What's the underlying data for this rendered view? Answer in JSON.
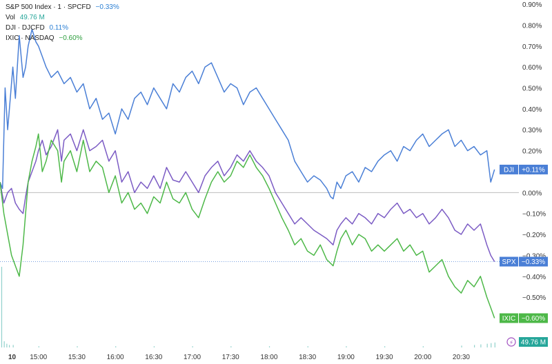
{
  "legend": {
    "spx": {
      "title": "S&P 500 Index · 1 · SPCFD",
      "change": "−0.33%",
      "color": "#2a7fd4"
    },
    "vol": {
      "title": "Vol",
      "value": "49.76 M",
      "color": "#26a69a"
    },
    "dji": {
      "title": "DJI · DJCFD",
      "change": "0.11%",
      "color": "#2a7fd4"
    },
    "ixic": {
      "title": "IXIC · NASDAQ",
      "change": "−0.60%",
      "color": "#2e9e3e"
    }
  },
  "badges": {
    "dji": {
      "symbol": "DJI",
      "value": "+0.11%"
    },
    "spx": {
      "symbol": "SPX",
      "value": "−0.33%"
    },
    "ixic": {
      "symbol": "IXIC",
      "value": "−0.60%"
    },
    "vol": {
      "value": "49.76 M"
    }
  },
  "colors": {
    "dji": "#4a7fd6",
    "spx": "#7b5bc4",
    "ixic": "#4db848",
    "vol": "#26a69a",
    "grid": "#bdbdbd"
  },
  "chart_data": {
    "type": "line",
    "ylim": [
      -0.74,
      0.92
    ],
    "xlim": [
      0,
      405
    ],
    "y_ticks": [
      "0.90%",
      "0.80%",
      "0.70%",
      "0.60%",
      "0.50%",
      "0.40%",
      "0.30%",
      "0.20%",
      "0.10%",
      "0.00%",
      "−0.10%",
      "−0.20%",
      "−0.30%",
      "−0.40%",
      "−0.50%",
      "−0.60%",
      "−0.70%"
    ],
    "y_tick_values": [
      0.9,
      0.8,
      0.7,
      0.6,
      0.5,
      0.4,
      0.3,
      0.2,
      0.1,
      0.0,
      -0.1,
      -0.2,
      -0.3,
      -0.4,
      -0.5,
      -0.6,
      -0.7
    ],
    "x_ticks": [
      "10",
      "15:00",
      "15:30",
      "16:00",
      "16:30",
      "17:00",
      "17:30",
      "18:00",
      "18:30",
      "19:00",
      "19:30",
      "20:00",
      "20:30"
    ],
    "x_tick_values": [
      0,
      30,
      60,
      90,
      120,
      150,
      180,
      210,
      240,
      270,
      300,
      330,
      360
    ],
    "series": [
      {
        "name": "DJI",
        "key": "dji",
        "x": [
          0,
          2,
          4,
          6,
          8,
          10,
          12,
          15,
          18,
          20,
          22,
          25,
          28,
          30,
          33,
          36,
          40,
          45,
          50,
          55,
          60,
          65,
          70,
          75,
          80,
          85,
          90,
          95,
          100,
          105,
          110,
          115,
          120,
          125,
          130,
          135,
          140,
          145,
          150,
          155,
          160,
          165,
          170,
          175,
          180,
          185,
          190,
          195,
          200,
          205,
          210,
          215,
          220,
          225,
          230,
          235,
          240,
          245,
          250,
          255,
          258,
          260,
          263,
          266,
          270,
          275,
          280,
          285,
          290,
          295,
          300,
          305,
          310,
          315,
          320,
          325,
          330,
          335,
          340,
          345,
          350,
          355,
          360,
          365,
          370,
          375,
          380,
          383,
          386
        ],
        "y": [
          0.05,
          0.02,
          0.5,
          0.3,
          0.45,
          0.6,
          0.45,
          0.75,
          0.55,
          0.6,
          0.7,
          0.78,
          0.72,
          0.7,
          0.65,
          0.6,
          0.55,
          0.58,
          0.52,
          0.55,
          0.48,
          0.52,
          0.4,
          0.45,
          0.35,
          0.38,
          0.28,
          0.4,
          0.35,
          0.45,
          0.48,
          0.42,
          0.5,
          0.45,
          0.4,
          0.52,
          0.48,
          0.55,
          0.58,
          0.52,
          0.6,
          0.62,
          0.55,
          0.48,
          0.52,
          0.5,
          0.42,
          0.48,
          0.5,
          0.45,
          0.4,
          0.35,
          0.3,
          0.25,
          0.15,
          0.1,
          0.05,
          0.08,
          0.06,
          0.02,
          -0.02,
          -0.03,
          0.05,
          0.02,
          0.08,
          0.1,
          0.05,
          0.12,
          0.1,
          0.15,
          0.18,
          0.2,
          0.15,
          0.22,
          0.2,
          0.25,
          0.28,
          0.22,
          0.25,
          0.28,
          0.3,
          0.22,
          0.25,
          0.2,
          0.22,
          0.18,
          0.2,
          0.05,
          0.11
        ]
      },
      {
        "name": "SPX",
        "key": "spx",
        "x": [
          0,
          3,
          6,
          9,
          12,
          15,
          18,
          20,
          22,
          25,
          28,
          30,
          33,
          36,
          40,
          45,
          48,
          50,
          55,
          60,
          65,
          70,
          75,
          80,
          85,
          90,
          95,
          100,
          105,
          110,
          115,
          120,
          125,
          130,
          135,
          140,
          145,
          150,
          155,
          160,
          165,
          170,
          175,
          180,
          185,
          190,
          195,
          200,
          205,
          210,
          215,
          220,
          225,
          230,
          235,
          240,
          245,
          250,
          255,
          260,
          263,
          266,
          270,
          275,
          280,
          285,
          290,
          295,
          300,
          305,
          310,
          315,
          320,
          325,
          330,
          335,
          340,
          345,
          350,
          355,
          360,
          365,
          370,
          375,
          380,
          383,
          386
        ],
        "y": [
          0.05,
          -0.05,
          0.0,
          0.02,
          -0.05,
          -0.08,
          -0.1,
          -0.02,
          0.05,
          0.1,
          0.15,
          0.2,
          0.25,
          0.18,
          0.22,
          0.3,
          0.15,
          0.25,
          0.28,
          0.2,
          0.3,
          0.2,
          0.22,
          0.25,
          0.15,
          0.2,
          0.05,
          0.1,
          0.0,
          0.05,
          0.02,
          0.08,
          0.02,
          0.12,
          0.06,
          0.05,
          0.1,
          0.05,
          0.0,
          0.08,
          0.12,
          0.15,
          0.08,
          0.12,
          0.18,
          0.15,
          0.2,
          0.15,
          0.12,
          0.08,
          0.0,
          -0.05,
          -0.1,
          -0.15,
          -0.12,
          -0.15,
          -0.18,
          -0.2,
          -0.22,
          -0.25,
          -0.18,
          -0.15,
          -0.12,
          -0.15,
          -0.1,
          -0.12,
          -0.15,
          -0.1,
          -0.12,
          -0.08,
          -0.05,
          -0.1,
          -0.08,
          -0.12,
          -0.1,
          -0.15,
          -0.12,
          -0.08,
          -0.12,
          -0.18,
          -0.2,
          -0.15,
          -0.18,
          -0.15,
          -0.25,
          -0.3,
          -0.33
        ]
      },
      {
        "name": "IXIC",
        "key": "ixic",
        "x": [
          0,
          3,
          6,
          9,
          12,
          15,
          18,
          20,
          22,
          25,
          28,
          30,
          33,
          36,
          40,
          45,
          48,
          50,
          55,
          60,
          65,
          70,
          75,
          80,
          85,
          90,
          95,
          100,
          105,
          110,
          115,
          120,
          125,
          130,
          135,
          140,
          145,
          150,
          155,
          160,
          165,
          170,
          175,
          180,
          185,
          190,
          195,
          200,
          205,
          210,
          215,
          220,
          225,
          230,
          235,
          240,
          245,
          250,
          255,
          260,
          263,
          266,
          270,
          275,
          280,
          285,
          290,
          295,
          300,
          305,
          310,
          315,
          320,
          325,
          330,
          335,
          340,
          345,
          350,
          355,
          360,
          365,
          370,
          375,
          380,
          383,
          386
        ],
        "y": [
          0.05,
          -0.1,
          -0.2,
          -0.3,
          -0.35,
          -0.4,
          -0.25,
          -0.1,
          0.05,
          0.15,
          0.22,
          0.28,
          0.1,
          0.15,
          0.25,
          0.2,
          0.05,
          0.15,
          0.2,
          0.1,
          0.25,
          0.1,
          0.15,
          0.12,
          0.0,
          0.08,
          -0.05,
          0.0,
          -0.08,
          -0.05,
          -0.1,
          -0.02,
          -0.05,
          0.05,
          -0.03,
          -0.05,
          0.0,
          -0.08,
          -0.12,
          -0.03,
          0.05,
          0.1,
          0.05,
          0.08,
          0.15,
          0.12,
          0.18,
          0.12,
          0.08,
          0.02,
          -0.05,
          -0.12,
          -0.18,
          -0.25,
          -0.22,
          -0.28,
          -0.3,
          -0.25,
          -0.32,
          -0.35,
          -0.28,
          -0.22,
          -0.18,
          -0.25,
          -0.2,
          -0.22,
          -0.28,
          -0.25,
          -0.28,
          -0.25,
          -0.22,
          -0.28,
          -0.25,
          -0.3,
          -0.28,
          -0.38,
          -0.35,
          -0.32,
          -0.4,
          -0.45,
          -0.48,
          -0.42,
          -0.45,
          -0.4,
          -0.5,
          -0.55,
          -0.6
        ]
      },
      {
        "name": "Vol",
        "key": "vol",
        "x": [
          1,
          3,
          5,
          7,
          10,
          30,
          60,
          90,
          120,
          150,
          180,
          210,
          240,
          270,
          300,
          330,
          360,
          370,
          375,
          380,
          383,
          386
        ],
        "y": [
          130,
          10,
          6,
          4,
          4,
          2,
          2,
          2,
          2,
          2,
          2,
          2,
          2,
          2,
          2,
          2,
          3,
          4,
          5,
          6,
          7,
          8
        ]
      }
    ]
  }
}
